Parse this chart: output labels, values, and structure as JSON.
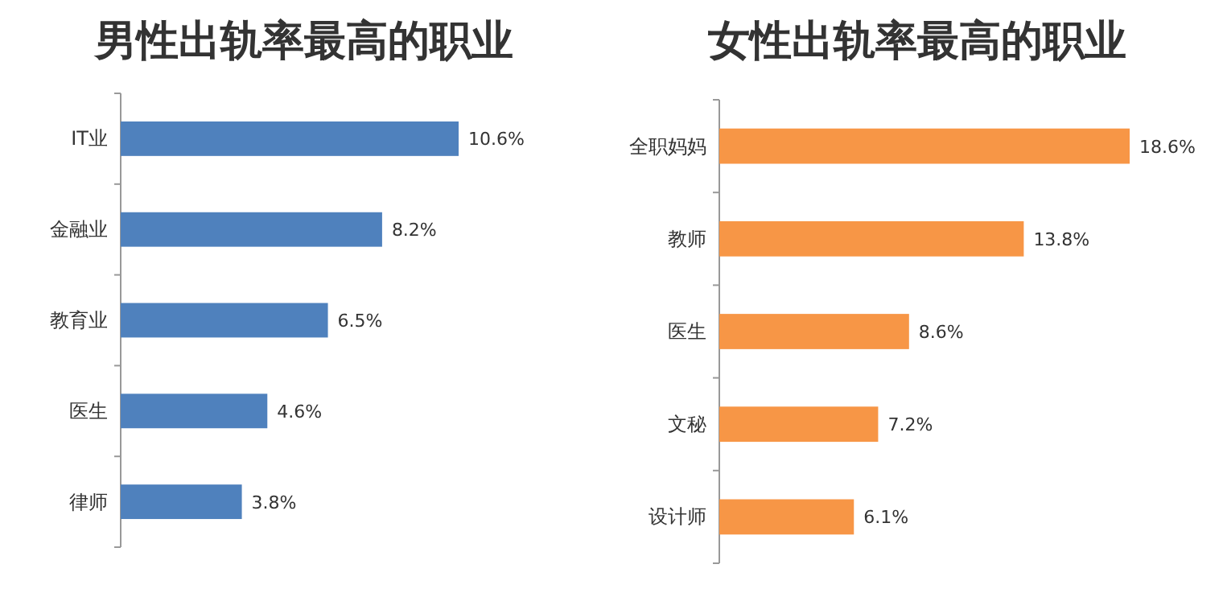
{
  "chart_data": [
    {
      "type": "bar",
      "orientation": "horizontal",
      "title": "男性出轨率最高的职业",
      "categories": [
        "IT业",
        "金融业",
        "教育业",
        "医生",
        "律师"
      ],
      "values": [
        10.6,
        8.2,
        6.5,
        4.6,
        3.8
      ],
      "value_labels": [
        "10.6%",
        "8.2%",
        "6.5%",
        "4.6%",
        "3.8%"
      ],
      "color": "#4f81bd"
    },
    {
      "type": "bar",
      "orientation": "horizontal",
      "title": "女性出轨率最高的职业",
      "categories": [
        "全职妈妈",
        "教师",
        "医生",
        "文秘",
        "设计师"
      ],
      "values": [
        18.6,
        13.8,
        8.6,
        7.2,
        6.1
      ],
      "value_labels": [
        "18.6%",
        "13.8%",
        "8.6%",
        "7.2%",
        "6.1%"
      ],
      "color": "#f79646"
    }
  ]
}
